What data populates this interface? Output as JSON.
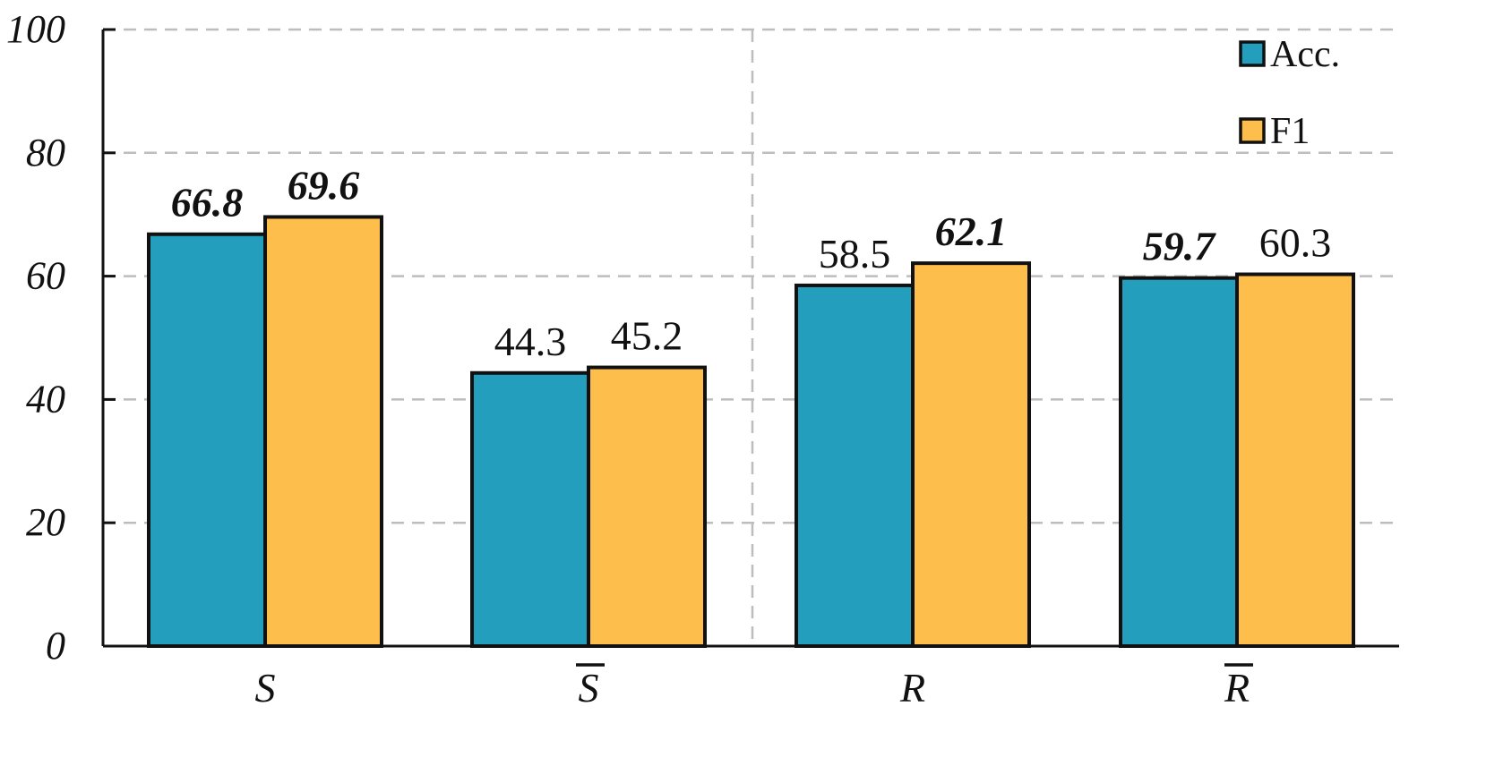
{
  "chart_data": {
    "type": "bar",
    "categories": [
      "S",
      "S",
      "R",
      "R"
    ],
    "category_overline": [
      false,
      true,
      false,
      true
    ],
    "series": [
      {
        "name": "Acc.",
        "color": "#239EBC",
        "values": [
          66.8,
          44.3,
          58.5,
          59.7
        ],
        "bold": [
          true,
          false,
          false,
          true
        ]
      },
      {
        "name": "F1",
        "color": "#FDBE4B",
        "values": [
          69.6,
          45.2,
          62.1,
          60.3
        ],
        "bold": [
          true,
          false,
          true,
          false
        ]
      }
    ],
    "value_labels": [
      [
        "66.8",
        "44.3",
        "58.5",
        "59.7"
      ],
      [
        "69.6",
        "45.2",
        "62.1",
        "60.3"
      ]
    ],
    "ylim": [
      0,
      100
    ],
    "yticks": [
      0,
      20,
      40,
      60,
      80,
      100
    ],
    "ytick_labels": [
      "0",
      "20",
      "40",
      "60",
      "80",
      "100"
    ],
    "grid": "horizontal dashed",
    "legend": "top-right",
    "title": "",
    "xlabel": "",
    "ylabel": ""
  }
}
